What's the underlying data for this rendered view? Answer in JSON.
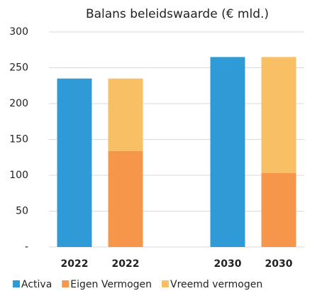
{
  "chart_data": {
    "type": "bar",
    "stacked": true,
    "title": "Balans beleidswaarde (€ mld.)",
    "categories": [
      "2022",
      "2022",
      null,
      "2030",
      "2030"
    ],
    "series": [
      {
        "name": "Activa",
        "color": "#2e9bd6",
        "values": [
          235,
          null,
          null,
          265,
          null
        ]
      },
      {
        "name": "Eigen Vermogen",
        "color": "#f5964a",
        "values": [
          null,
          134,
          null,
          null,
          103
        ]
      },
      {
        "name": "Vreemd vermogen",
        "color": "#f9bf64",
        "values": [
          null,
          101,
          null,
          null,
          162
        ]
      }
    ],
    "ylim": [
      0,
      300
    ],
    "yticks": [
      {
        "value": 0,
        "label": "-"
      },
      50,
      100,
      150,
      200,
      250,
      300
    ],
    "grid": true,
    "legend": "bottom"
  }
}
